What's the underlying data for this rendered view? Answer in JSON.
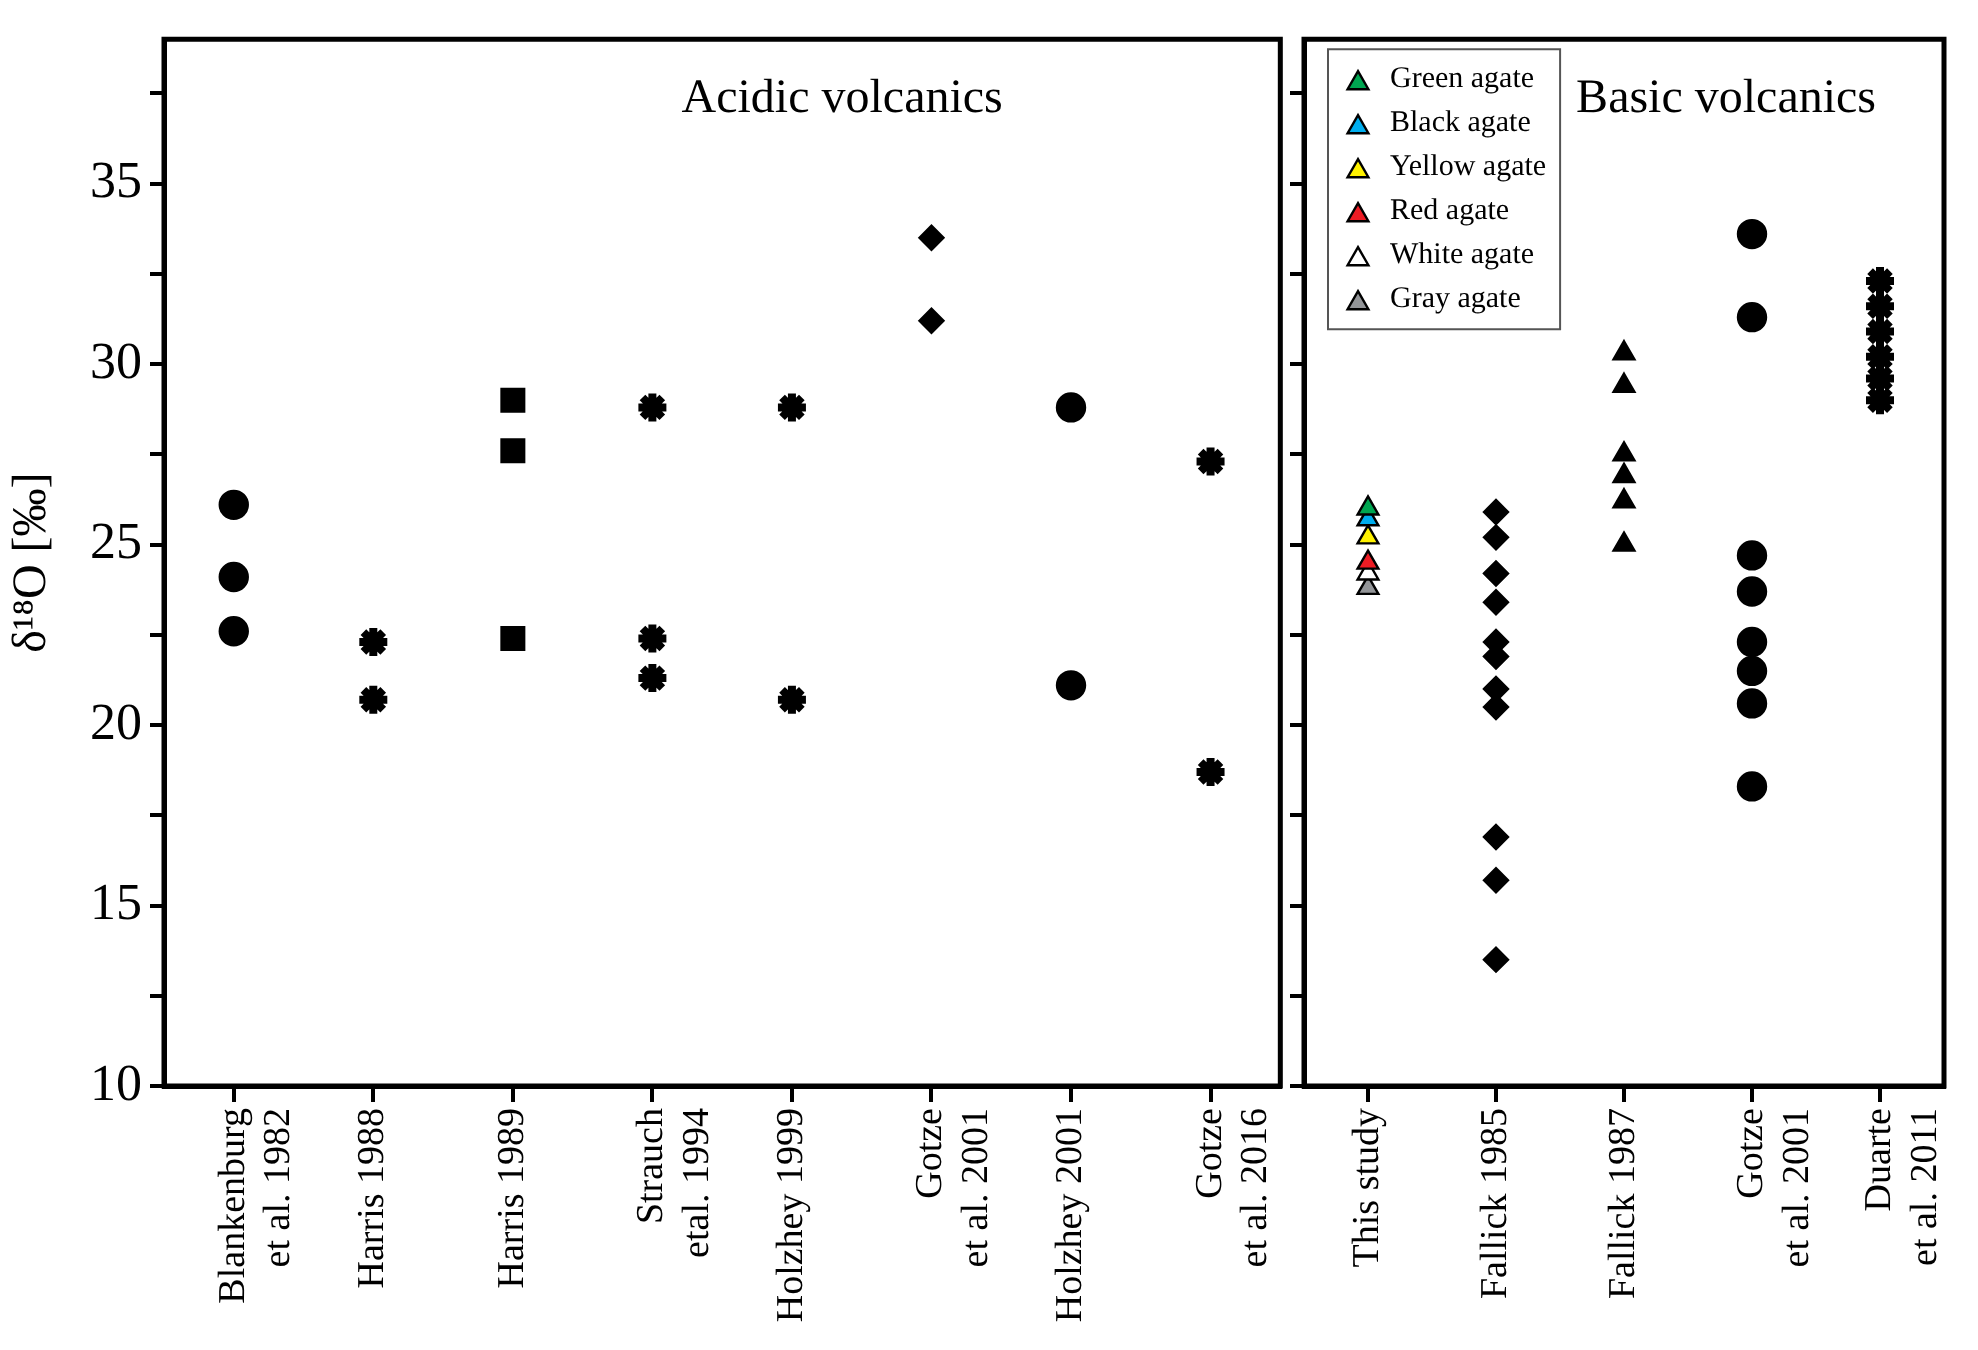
{
  "chart_data": [
    {
      "type": "scatter",
      "title": "Acidic volcanics",
      "ylabel": "δ¹⁸O [‰]",
      "categories": [
        "Blankenburg\net al. 1982",
        "Harris 1988",
        "Harris 1989",
        "Strauch\netal. 1994",
        "Holzhey 1999",
        "Gotze\net al. 2001",
        "Holzhey 2001",
        "Gotze\net al. 2016"
      ],
      "ylim": [
        10,
        39
      ],
      "yticks": [
        10,
        {
          "value": 12.5,
          "label": null
        },
        15,
        {
          "value": 17.5,
          "label": null
        },
        20,
        {
          "value": 22.5,
          "label": null
        },
        25,
        {
          "value": 27.5,
          "label": null
        },
        30,
        {
          "value": 32.5,
          "label": null
        },
        35,
        {
          "value": 37.5,
          "label": null
        }
      ],
      "grid": false,
      "series": [
        {
          "color": "#000000",
          "marker": "circle",
          "x": [
            "Blankenburg\net al. 1982",
            "Blankenburg\net al. 1982",
            "Blankenburg\net al. 1982"
          ],
          "values": [
            26.1,
            24.1,
            22.6
          ]
        },
        {
          "color": "#000000",
          "marker": "cross",
          "x": [
            "Harris 1988",
            "Harris 1988"
          ],
          "values": [
            22.3,
            20.7
          ]
        },
        {
          "color": "#000000",
          "marker": "square",
          "x": [
            "Harris 1989",
            "Harris 1989",
            "Harris 1989"
          ],
          "values": [
            29.0,
            27.6,
            22.4
          ]
        },
        {
          "color": "#000000",
          "marker": "cross",
          "x": [
            "Strauch\netal. 1994",
            "Strauch\netal. 1994",
            "Strauch\netal. 1994"
          ],
          "values": [
            28.8,
            22.4,
            21.3
          ]
        },
        {
          "color": "#000000",
          "marker": "cross",
          "x": [
            "Holzhey 1999",
            "Holzhey 1999"
          ],
          "values": [
            28.8,
            20.7
          ]
        },
        {
          "color": "#000000",
          "marker": "diamond",
          "x": [
            "Gotze\net al. 2001",
            "Gotze\net al. 2001"
          ],
          "values": [
            33.5,
            31.2
          ]
        },
        {
          "color": "#000000",
          "marker": "circle",
          "x": [
            "Holzhey 2001",
            "Holzhey 2001"
          ],
          "values": [
            28.8,
            21.1
          ]
        },
        {
          "color": "#000000",
          "marker": "cross",
          "x": [
            "Gotze\net al. 2016",
            "Gotze\net al. 2016"
          ],
          "values": [
            27.3,
            18.7
          ]
        }
      ]
    },
    {
      "type": "scatter",
      "title": "Basic volcanics",
      "categories": [
        "This study",
        "Fallick 1985",
        "Fallick 1987",
        "Gotze\net al. 2001",
        "Duarte\net al. 2011"
      ],
      "ylim": [
        10,
        39
      ],
      "yticks": [
        10,
        {
          "value": 12.5,
          "label": null
        },
        15,
        {
          "value": 17.5,
          "label": null
        },
        20,
        {
          "value": 22.5,
          "label": null
        },
        25,
        {
          "value": 27.5,
          "label": null
        },
        30,
        {
          "value": 32.5,
          "label": null
        },
        35,
        {
          "value": 37.5,
          "label": null
        }
      ],
      "tick_labels": "x",
      "grid": false,
      "legend": "top left",
      "series": [
        {
          "name": "Green agate",
          "color": "#00a651",
          "marker": "triangle",
          "x": [
            "This study"
          ],
          "values": [
            26.0
          ]
        },
        {
          "name": "Black agate",
          "color": "#00aeef",
          "marker": "triangle",
          "x": [
            "This study"
          ],
          "values": [
            25.7
          ]
        },
        {
          "name": "Yellow agate",
          "color": "#fff200",
          "marker": "triangle",
          "x": [
            "This study"
          ],
          "values": [
            25.2
          ]
        },
        {
          "name": "Red agate",
          "color": "#ed1c24",
          "marker": "triangle",
          "x": [
            "This study"
          ],
          "values": [
            24.5
          ]
        },
        {
          "name": "White agate",
          "color": "#ffffff",
          "marker": "triangle",
          "x": [
            "This study"
          ],
          "values": [
            24.2
          ]
        },
        {
          "name": "Gray agate",
          "color": "#939598",
          "marker": "triangle",
          "x": [
            "This study"
          ],
          "values": [
            23.8
          ]
        },
        {
          "color": "#000000",
          "marker": "diamond",
          "x": [
            "Fallick 1985",
            "Fallick 1985",
            "Fallick 1985",
            "Fallick 1985",
            "Fallick 1985",
            "Fallick 1985",
            "Fallick 1985",
            "Fallick 1985",
            "Fallick 1985",
            "Fallick 1985",
            "Fallick 1985"
          ],
          "values": [
            25.9,
            25.2,
            24.2,
            23.4,
            22.3,
            21.9,
            21.0,
            20.5,
            16.9,
            15.7,
            13.5
          ]
        },
        {
          "color": "#000000",
          "marker": "triangle",
          "x": [
            "Fallick 1987",
            "Fallick 1987",
            "Fallick 1987",
            "Fallick 1987",
            "Fallick 1987",
            "Fallick 1987"
          ],
          "values": [
            30.3,
            29.4,
            27.5,
            26.9,
            26.2,
            25.0
          ]
        },
        {
          "color": "#000000",
          "marker": "circle",
          "x": [
            "Gotze\net al. 2001",
            "Gotze\net al. 2001",
            "Gotze\net al. 2001",
            "Gotze\net al. 2001",
            "Gotze\net al. 2001",
            "Gotze\net al. 2001",
            "Gotze\net al. 2001",
            "Gotze\net al. 2001"
          ],
          "values": [
            33.6,
            31.3,
            24.7,
            23.7,
            22.3,
            21.5,
            20.6,
            18.3
          ]
        },
        {
          "color": "#000000",
          "marker": "cross",
          "x": [
            "Duarte\net al. 2011",
            "Duarte\net al. 2011",
            "Duarte\net al. 2011",
            "Duarte\net al. 2011",
            "Duarte\net al. 2011",
            "Duarte\net al. 2011"
          ],
          "values": [
            32.3,
            31.6,
            30.9,
            30.2,
            29.6,
            29.0
          ]
        }
      ]
    }
  ]
}
